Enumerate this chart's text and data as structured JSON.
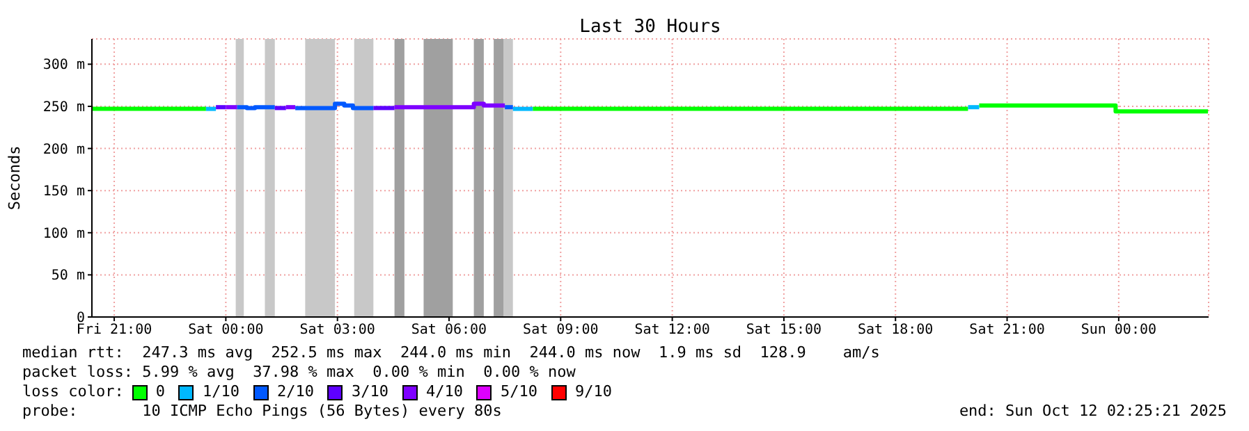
{
  "chart_data": {
    "type": "step",
    "title": "Last 30 Hours",
    "ylabel": "Seconds",
    "legend_title": "loss color:",
    "legend": "bottom",
    "grid": true,
    "xlim": [
      "2025-10-10T20:24",
      "2025-10-12T02:25"
    ],
    "xticks": [
      {
        "value": "2025-10-10T21:00",
        "label": "Fri 21:00"
      },
      {
        "value": "2025-10-11T00:00",
        "label": "Sat 00:00"
      },
      {
        "value": "2025-10-11T03:00",
        "label": "Sat 03:00"
      },
      {
        "value": "2025-10-11T06:00",
        "label": "Sat 06:00"
      },
      {
        "value": "2025-10-11T09:00",
        "label": "Sat 09:00"
      },
      {
        "value": "2025-10-11T12:00",
        "label": "Sat 12:00"
      },
      {
        "value": "2025-10-11T15:00",
        "label": "Sat 15:00"
      },
      {
        "value": "2025-10-11T18:00",
        "label": "Sat 18:00"
      },
      {
        "value": "2025-10-11T21:00",
        "label": "Sat 21:00"
      },
      {
        "value": "2025-10-12T00:00",
        "label": "Sun 00:00"
      }
    ],
    "ylim": [
      0,
      330
    ],
    "yticks": [
      0,
      {
        "value": 50,
        "label": "50 m"
      },
      {
        "value": 100,
        "label": "100 m"
      },
      {
        "value": 150,
        "label": "150 m"
      },
      {
        "value": 200,
        "label": "200 m"
      },
      {
        "value": 250,
        "label": "250 m"
      },
      {
        "value": 300,
        "label": "300 m"
      }
    ],
    "bands": [
      {
        "axis": "x",
        "from": "2025-10-11T00:16",
        "to": "2025-10-11T00:29",
        "color": "#c8c8c8"
      },
      {
        "axis": "x",
        "from": "2025-10-11T01:03",
        "to": "2025-10-11T01:19",
        "color": "#c8c8c8"
      },
      {
        "axis": "x",
        "from": "2025-10-11T02:08",
        "to": "2025-10-11T02:56",
        "color": "#c8c8c8"
      },
      {
        "axis": "x",
        "from": "2025-10-11T03:27",
        "to": "2025-10-11T03:58",
        "color": "#c8c8c8"
      },
      {
        "axis": "x",
        "from": "2025-10-11T07:28",
        "to": "2025-10-11T07:43",
        "color": "#c8c8c8"
      },
      {
        "axis": "x",
        "from": "2025-10-11T04:32",
        "to": "2025-10-11T04:48",
        "color": "#a0a0a0"
      },
      {
        "axis": "x",
        "from": "2025-10-11T05:19",
        "to": "2025-10-11T06:06",
        "color": "#a0a0a0"
      },
      {
        "axis": "x",
        "from": "2025-10-11T06:40",
        "to": "2025-10-11T06:56",
        "color": "#a0a0a0"
      },
      {
        "axis": "x",
        "from": "2025-10-11T07:12",
        "to": "2025-10-11T07:28",
        "color": "#a0a0a0"
      }
    ],
    "series": [
      {
        "name": "0",
        "color": "#00ff00",
        "x": [
          "2025-10-10T20:24",
          "2025-10-10T23:28"
        ],
        "values": [
          247,
          247
        ]
      },
      {
        "color": "#00ff00",
        "x": [
          "2025-10-11T08:15",
          "2025-10-11T19:57"
        ],
        "values": [
          247,
          247
        ]
      },
      {
        "color": "#00ff00",
        "x": [
          "2025-10-11T20:15",
          "2025-10-11T23:55",
          "2025-10-12T02:24"
        ],
        "values": [
          251,
          244,
          244
        ]
      },
      {
        "name": "1/10",
        "color": "#00b8ff",
        "x": [
          "2025-10-10T23:28",
          "2025-10-10T23:44"
        ],
        "values": [
          247,
          247
        ]
      },
      {
        "color": "#00b8ff",
        "x": [
          "2025-10-11T07:43",
          "2025-10-11T08:15"
        ],
        "values": [
          247,
          247
        ]
      },
      {
        "color": "#00b8ff",
        "x": [
          "2025-10-11T19:57",
          "2025-10-11T20:15"
        ],
        "values": [
          249,
          249
        ]
      },
      {
        "name": "2/10",
        "color": "#0059ff",
        "x": [
          "2025-10-11T00:18",
          "2025-10-11T00:34",
          "2025-10-11T00:47",
          "2025-10-11T01:19"
        ],
        "values": [
          249,
          248,
          249,
          249
        ]
      },
      {
        "color": "#0059ff",
        "x": [
          "2025-10-11T01:52",
          "2025-10-11T02:56",
          "2025-10-11T03:11",
          "2025-10-11T03:25",
          "2025-10-11T03:58"
        ],
        "values": [
          248,
          253,
          251,
          248,
          248
        ]
      },
      {
        "color": "#0059ff",
        "x": [
          "2025-10-11T07:30",
          "2025-10-11T07:43"
        ],
        "values": [
          249,
          249
        ]
      },
      {
        "name": "3/10",
        "color": "#5e00ff",
        "x": [
          "2025-10-10T23:44",
          "2025-10-11T00:00"
        ],
        "values": [
          249,
          249
        ]
      },
      {
        "color": "#5e00ff",
        "x": [
          "2025-10-11T01:19",
          "2025-10-11T01:37"
        ],
        "values": [
          248,
          248
        ]
      },
      {
        "color": "#5e00ff",
        "x": [
          "2025-10-11T03:58",
          "2025-10-11T04:32"
        ],
        "values": [
          248,
          248
        ]
      },
      {
        "name": "4/10",
        "color": "#7e00ff",
        "x": [
          "2025-10-11T00:00",
          "2025-10-11T00:18"
        ],
        "values": [
          249,
          249
        ]
      },
      {
        "color": "#7e00ff",
        "x": [
          "2025-10-11T01:37",
          "2025-10-11T01:52"
        ],
        "values": [
          249,
          249
        ]
      },
      {
        "color": "#7e00ff",
        "x": [
          "2025-10-11T04:32",
          "2025-10-11T06:40",
          "2025-10-11T06:56",
          "2025-10-11T07:30"
        ],
        "values": [
          249,
          253,
          251,
          251
        ]
      },
      {
        "name": "5/10",
        "color": "#dd00ff"
      },
      {
        "name": "9/10",
        "color": "#ff0000"
      }
    ],
    "annotations": [
      "median rtt:  247.3 ms avg  252.5 ms max  244.0 ms min  244.0 ms now  1.9 ms sd  128.9    am/s",
      "packet loss: 5.99 % avg  37.98 % max  0.00 % min  0.00 % now",
      "probe:       10 ICMP Echo Pings (56 Bytes) every 80s",
      "end: Sun Oct 12 02:25:21 2025"
    ]
  }
}
